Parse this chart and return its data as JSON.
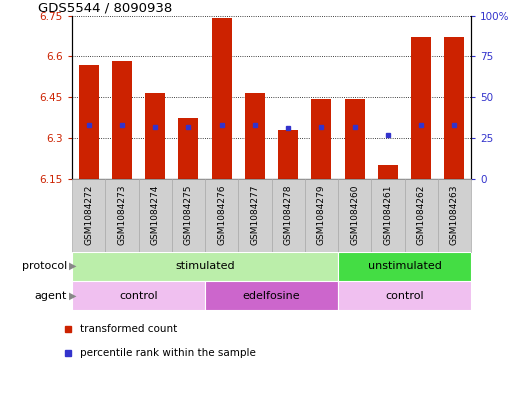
{
  "title": "GDS5544 / 8090938",
  "samples": [
    "GSM1084272",
    "GSM1084273",
    "GSM1084274",
    "GSM1084275",
    "GSM1084276",
    "GSM1084277",
    "GSM1084278",
    "GSM1084279",
    "GSM1084260",
    "GSM1084261",
    "GSM1084262",
    "GSM1084263"
  ],
  "transformed_count": [
    6.57,
    6.585,
    6.465,
    6.375,
    6.74,
    6.465,
    6.33,
    6.445,
    6.445,
    6.2,
    6.67,
    6.67
  ],
  "percentile_rank": [
    33,
    33,
    32,
    32,
    33,
    33,
    31,
    32,
    32,
    27,
    33,
    33
  ],
  "ylim_left": [
    6.15,
    6.75
  ],
  "ylim_right": [
    0,
    100
  ],
  "yticks_left": [
    6.15,
    6.3,
    6.45,
    6.6,
    6.75
  ],
  "yticks_right": [
    0,
    25,
    50,
    75,
    100
  ],
  "ytick_labels_left": [
    "6.15",
    "6.3",
    "6.45",
    "6.6",
    "6.75"
  ],
  "ytick_labels_right": [
    "0",
    "25",
    "50",
    "75",
    "100%"
  ],
  "bar_color": "#cc2200",
  "dot_color": "#3333cc",
  "bar_bottom": 6.15,
  "protocol_groups": [
    {
      "label": "stimulated",
      "start": 0,
      "end": 8,
      "color": "#bbeeaa"
    },
    {
      "label": "unstimulated",
      "start": 8,
      "end": 12,
      "color": "#44dd44"
    }
  ],
  "agent_groups": [
    {
      "label": "control",
      "start": 0,
      "end": 4,
      "color": "#f0c0f0"
    },
    {
      "label": "edelfosine",
      "start": 4,
      "end": 8,
      "color": "#cc66cc"
    },
    {
      "label": "control",
      "start": 8,
      "end": 12,
      "color": "#f0c0f0"
    }
  ],
  "legend_items": [
    {
      "label": "transformed count",
      "color": "#cc2200"
    },
    {
      "label": "percentile rank within the sample",
      "color": "#3333cc"
    }
  ],
  "grid_color": "black",
  "background_color": "#ffffff",
  "label_protocol": "protocol",
  "label_agent": "agent",
  "sample_bg_color": "#d0d0d0",
  "sample_box_edge": "#aaaaaa"
}
